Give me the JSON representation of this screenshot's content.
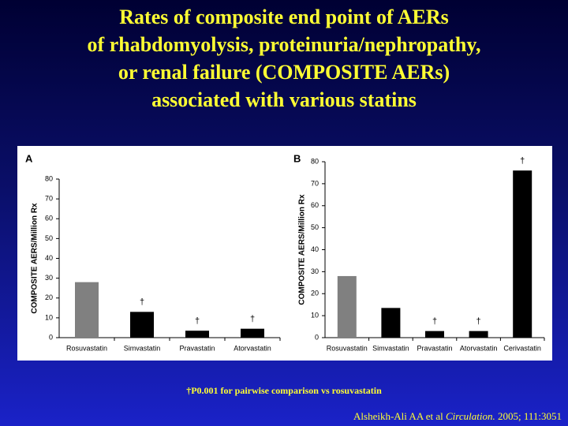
{
  "title": [
    "Rates of composite end point of AERs",
    "of rhabdomyolysis, proteinuria/nephropathy,",
    "or renal failure (COMPOSITE AERs)",
    "associated with various statins"
  ],
  "chart_data": [
    {
      "type": "bar",
      "panel_label": "A",
      "ylabel": "COMPOSITE AERS/Million Rx",
      "categories": [
        "Rosuvastatin",
        "Simvastatin",
        "Pravastatin",
        "Atorvastatin"
      ],
      "values": [
        28,
        13,
        3.5,
        4.5
      ],
      "colors": [
        "#808080",
        "#000000",
        "#000000",
        "#000000"
      ],
      "markers": [
        null,
        "†",
        "†",
        "†"
      ],
      "ylim": [
        0,
        80
      ],
      "yticks": [
        0,
        10,
        20,
        30,
        40,
        50,
        60,
        70,
        80
      ]
    },
    {
      "type": "bar",
      "panel_label": "B",
      "ylabel": "COMPOSITE AERS/Million Rx",
      "categories": [
        "Rosuvastatin",
        "Simvastatin",
        "Pravastatin",
        "Atorvastatin",
        "Cerivastatin"
      ],
      "values": [
        28,
        13.5,
        3,
        3,
        76
      ],
      "colors": [
        "#808080",
        "#000000",
        "#000000",
        "#000000",
        "#000000"
      ],
      "markers": [
        null,
        null,
        "†",
        "†",
        "†"
      ],
      "ylim": [
        0,
        80
      ],
      "yticks": [
        0,
        10,
        20,
        30,
        40,
        50,
        60,
        70,
        80
      ]
    }
  ],
  "footnote": "†P0.001 for pairwise comparison vs rosuvastatin",
  "citation": {
    "authors": "Alsheikh-Ali AA et al",
    "journal": "Circulation.",
    "details": "2005; 111:3051"
  }
}
